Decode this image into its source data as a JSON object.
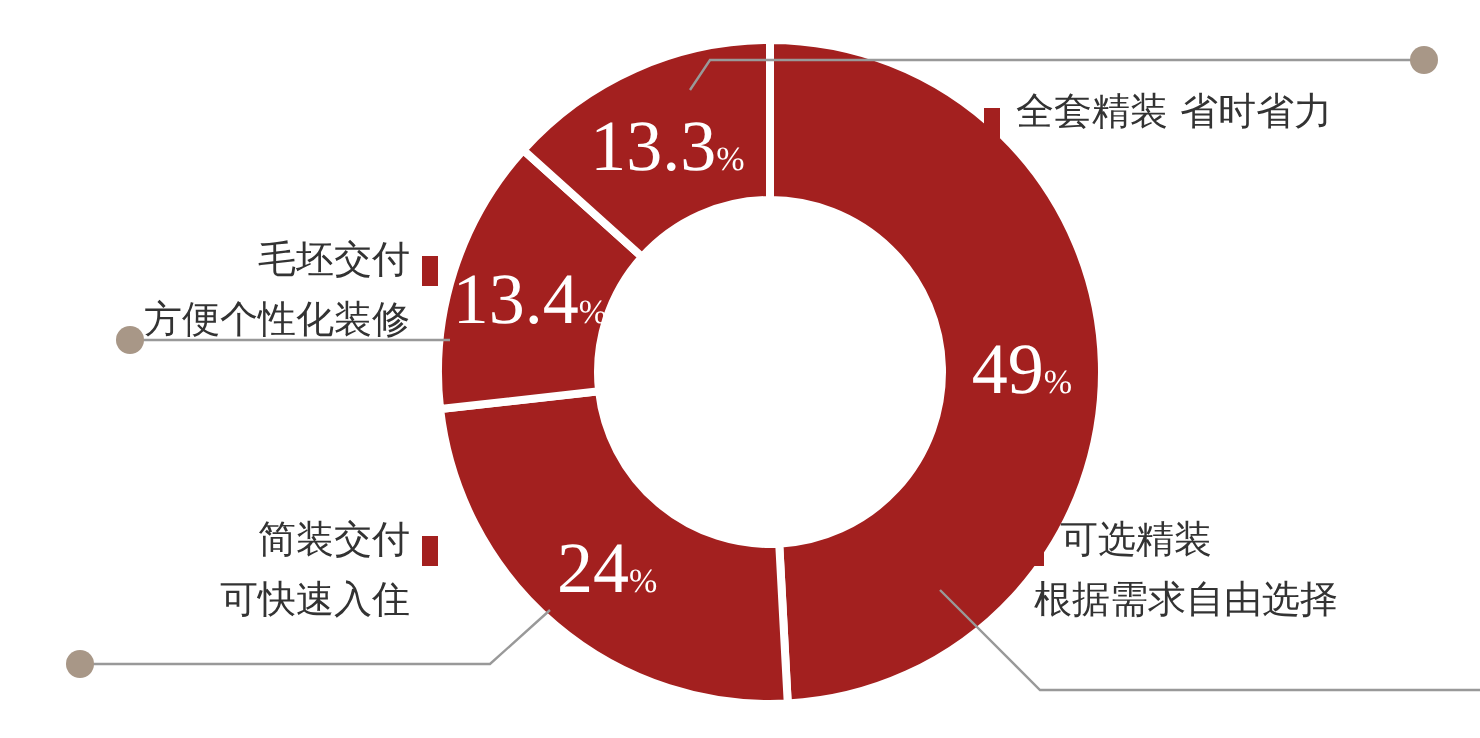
{
  "chart_data": {
    "type": "donut",
    "categories": [
      "可选精装",
      "简装交付",
      "毛坯交付",
      "全套精装 省时省力"
    ],
    "annotations": [
      "根据需求自由选择",
      "可快速入住",
      "方便个性化装修"
    ],
    "values": [
      49,
      24,
      13.4,
      13.3
    ],
    "value_labels": [
      "49%",
      "24%",
      "13.4%",
      "13.3%"
    ],
    "colors": [
      "#a3201f",
      "#a3201f",
      "#a3201f",
      "#a3201f"
    ],
    "legend": "right"
  }
}
